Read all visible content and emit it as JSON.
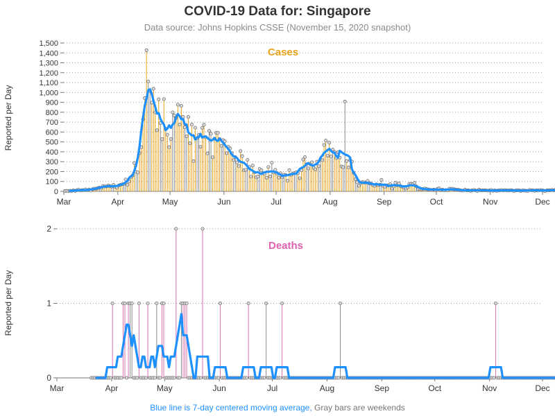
{
  "header": {
    "title": "COVID-19 Data for: Singapore",
    "subtitle": "Data source: Johns Hopkins CSSE (November 15, 2020 snapshot)"
  },
  "footnote": {
    "blue_part": "Blue line is 7-day centered moving average,",
    "gray_part": "Gray bars are weekends"
  },
  "colors": {
    "cases_bar": "#e8a31c",
    "deaths_bar": "#d56fb0",
    "weekend_bar": "#8c8c8c",
    "moving_average": "#1e90ff",
    "cases_label": "#e8a31c",
    "deaths_label": "#e060b0"
  },
  "chart_data": [
    {
      "type": "bar",
      "title": "Cases",
      "ylabel": "Reported per Day",
      "xlabel": "",
      "x_ticks": [
        "Mar",
        "Apr",
        "May",
        "Jun",
        "Jul",
        "Aug",
        "Sep",
        "Oct",
        "Nov",
        "Dec"
      ],
      "y_ticks": [
        0,
        100,
        200,
        300,
        400,
        500,
        600,
        700,
        800,
        900,
        1000,
        1100,
        1200,
        1300,
        1400,
        1500
      ],
      "y_tick_labels": [
        "0",
        "100",
        "200",
        "300",
        "400",
        "500",
        "600",
        "700",
        "800",
        "900",
        "1,000",
        "1,100",
        "1,200",
        "1,300",
        "1,400",
        "1,500"
      ],
      "ylim": [
        0,
        1500
      ],
      "xlim": [
        "2020-03-01",
        "2020-12-01"
      ],
      "grid": "horizontal dotted",
      "date_start": "2020-03-01",
      "values": [
        2,
        6,
        2,
        6,
        4,
        10,
        5,
        12,
        15,
        8,
        12,
        13,
        20,
        11,
        18,
        8,
        22,
        28,
        26,
        34,
        38,
        35,
        54,
        49,
        49,
        58,
        52,
        48,
        65,
        45,
        40,
        58,
        65,
        71,
        75,
        120,
        66,
        100,
        142,
        160,
        287,
        198,
        191,
        386,
        447,
        728,
        942,
        1426,
        1111,
        1016,
        897,
        1037,
        799,
        618,
        931,
        690,
        528,
        932,
        632,
        573,
        447,
        528,
        799,
        768,
        741,
        876,
        675,
        864,
        753,
        648,
        557,
        752,
        486,
        675,
        305,
        644,
        537,
        570,
        451,
        642,
        673,
        548,
        383,
        611,
        583,
        345,
        533,
        591,
        590,
        530,
        460,
        518,
        506,
        386,
        451,
        434,
        386,
        316,
        347,
        293,
        256,
        407,
        356,
        214,
        218,
        318,
        247,
        149,
        262,
        191,
        142,
        151,
        226,
        213,
        183,
        178,
        138,
        246,
        151,
        290,
        191,
        218,
        179,
        139,
        183,
        142,
        168,
        165,
        107,
        214,
        167,
        180,
        185,
        192,
        183,
        133,
        214,
        322,
        347,
        274,
        232,
        280,
        294,
        238,
        223,
        300,
        254,
        320,
        316,
        469,
        513,
        360,
        492,
        354,
        422,
        397,
        338,
        394,
        341,
        252,
        245,
        908,
        307,
        242,
        315,
        302,
        188,
        124,
        93,
        56,
        84,
        93,
        91,
        86,
        106,
        82,
        79,
        66,
        56,
        71,
        63,
        68,
        116,
        55,
        45,
        60,
        61,
        72,
        30,
        51,
        87,
        62,
        80,
        52,
        44,
        39,
        30,
        41,
        76,
        75,
        74,
        86,
        51,
        23,
        27,
        22,
        24,
        29,
        23,
        20,
        15,
        14,
        18,
        13,
        23,
        31,
        12,
        18,
        10,
        13,
        11,
        27,
        25,
        27,
        21,
        16,
        16,
        12,
        8,
        7,
        17,
        11,
        10,
        6,
        10,
        14,
        10,
        4,
        17,
        9,
        10,
        11,
        10,
        7,
        9,
        14,
        6,
        10,
        6,
        8,
        9,
        13,
        9,
        13,
        9,
        8,
        12,
        11,
        5,
        8,
        11,
        11,
        5,
        9,
        8,
        7,
        5,
        14,
        12,
        12,
        6,
        11,
        8,
        13,
        12,
        8,
        4,
        10,
        10,
        11,
        14,
        10,
        17,
        9,
        12,
        9,
        12,
        8,
        5,
        7,
        12,
        10,
        8,
        9,
        11,
        8,
        5,
        6,
        9,
        11,
        7,
        6,
        9,
        8,
        5,
        6,
        7,
        8,
        6,
        5,
        4,
        6,
        20,
        11,
        3,
        4
      ]
    },
    {
      "type": "bar",
      "title": "Deaths",
      "ylabel": "Reported per Day",
      "xlabel": "",
      "x_ticks": [
        "Mar",
        "Apr",
        "May",
        "Jun",
        "Jul",
        "Aug",
        "Sep",
        "Oct",
        "Nov",
        "Dec"
      ],
      "y_ticks": [
        0,
        1,
        2
      ],
      "y_tick_labels": [
        "0",
        "1",
        "2"
      ],
      "ylim": [
        0,
        2
      ],
      "xlim": [
        "2020-03-01",
        "2020-12-01"
      ],
      "grid": "horizontal dotted",
      "date_start": "2020-03-20",
      "values": [
        0,
        0,
        0,
        0,
        0,
        0,
        0,
        0,
        0,
        0,
        0,
        0,
        1,
        0,
        0,
        0,
        0,
        0,
        1,
        1,
        0,
        1,
        1,
        1,
        0,
        0,
        0,
        1,
        0,
        0,
        0,
        0,
        1,
        0,
        0,
        0,
        0,
        1,
        0,
        0,
        1,
        1,
        0,
        0,
        0,
        0,
        0,
        0,
        2,
        0,
        0,
        1,
        1,
        1,
        1,
        0,
        0,
        0,
        0,
        0,
        0,
        0,
        0,
        2,
        0,
        0,
        0,
        0,
        0,
        0,
        0,
        0,
        0,
        1,
        0,
        0,
        0,
        0,
        0,
        0,
        0,
        0,
        0,
        0,
        0,
        0,
        0,
        0,
        0,
        1,
        0,
        0,
        0,
        0,
        0,
        0,
        0,
        0,
        0,
        1,
        0,
        0,
        0,
        0,
        0,
        0,
        0,
        0,
        1,
        0,
        0,
        0,
        0,
        0,
        0,
        0,
        0,
        0,
        0,
        0,
        0,
        0,
        0,
        0,
        0,
        0,
        0,
        0,
        0,
        0,
        0,
        0,
        0,
        0,
        0,
        0,
        0,
        0,
        0,
        0,
        0,
        1,
        0,
        0,
        0,
        0,
        0,
        0,
        0,
        0,
        0,
        0,
        0,
        0,
        0,
        0,
        0,
        0,
        0,
        0,
        0,
        0,
        0,
        0,
        0,
        0,
        0,
        0,
        0,
        0,
        0,
        0,
        0,
        0,
        0,
        0,
        0,
        0,
        0,
        0,
        0,
        0,
        0,
        0,
        0,
        0,
        0,
        0,
        0,
        0,
        0,
        0,
        0,
        0,
        0,
        0,
        0,
        0,
        0,
        0,
        0,
        0,
        0,
        0,
        0,
        0,
        0,
        0,
        0,
        0,
        0,
        0,
        0,
        0,
        0,
        0,
        0,
        0,
        0,
        0,
        0,
        0,
        0,
        0,
        0,
        0,
        0,
        0,
        0,
        1,
        0,
        0,
        0,
        0,
        0,
        0,
        0,
        0,
        0,
        0,
        0,
        0,
        0,
        0,
        0,
        0,
        0,
        0,
        0,
        0,
        0,
        0,
        0,
        0,
        0,
        0,
        0,
        0,
        0,
        0,
        0,
        0,
        0,
        0,
        0,
        0,
        0,
        0,
        0,
        0,
        0,
        0,
        0,
        0,
        0,
        0,
        0,
        0,
        0,
        0
      ]
    }
  ]
}
